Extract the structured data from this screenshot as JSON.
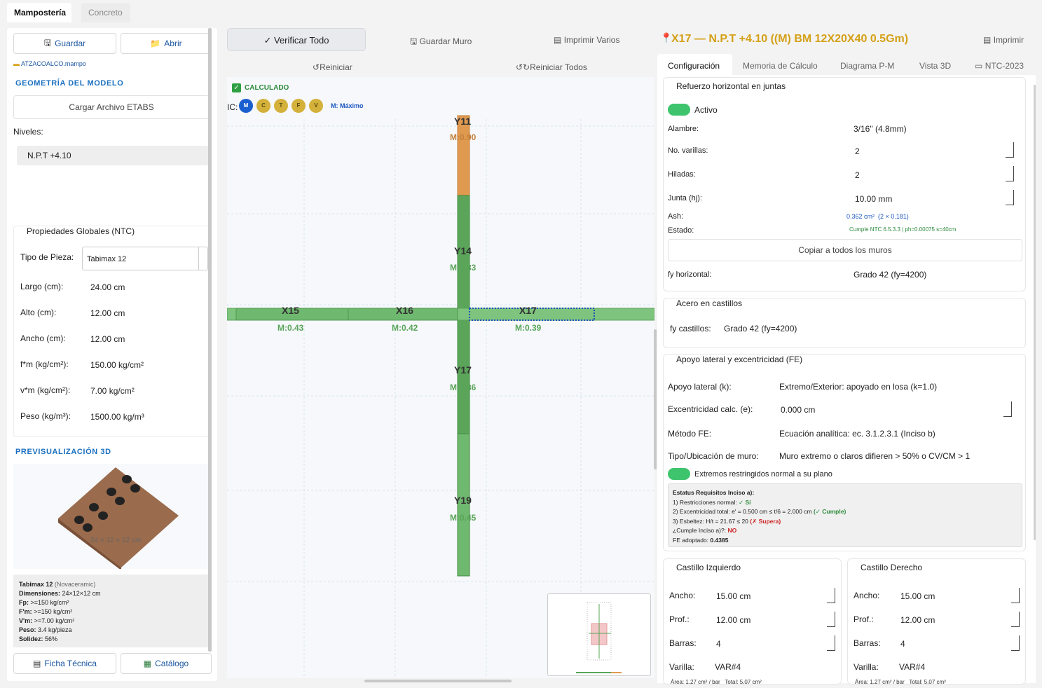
{
  "tabs": {
    "mamposteria": "Mampostería",
    "concreto": "Concreto"
  },
  "left": {
    "guardar": "Guardar",
    "abrir": "Abrir",
    "file": "ATZACOALCO.mampo",
    "geom_title": "GEOMETRÍA DEL MODELO",
    "cargar": "Cargar Archivo ETABS",
    "niveles_label": "Niveles:",
    "nivel_item": "N.P.T +4.10",
    "props_title": "Propiedades Globales (NTC)",
    "tipo_label": "Tipo de Pieza:",
    "tipo_value": "Tabimax 12",
    "props": [
      {
        "label": "Largo (cm):",
        "value": "24.00 cm"
      },
      {
        "label": "Alto (cm):",
        "value": "12.00 cm"
      },
      {
        "label": "Ancho (cm):",
        "value": "12.00 cm"
      },
      {
        "label": "f*m (kg/cm²):",
        "value": "150.00 kg/cm²"
      },
      {
        "label": "v*m (kg/cm²):",
        "value": "7.00 kg/cm²"
      },
      {
        "label": "Peso (kg/m³):",
        "value": "1500.00 kg/m³"
      }
    ],
    "preview_title": "PREVISUALIZACIÓN 3D",
    "preview_dims": "24 × 12 × 12 cm",
    "info": {
      "name": "Tabimax 12",
      "brand": "(Novaceramic)",
      "lines": [
        {
          "k": "Dimensiones:",
          "v": "24×12×12 cm"
        },
        {
          "k": "Fp:",
          "v": ">=150 kg/cm²"
        },
        {
          "k": "F'm:",
          "v": ">=150 kg/cm²"
        },
        {
          "k": "V'm:",
          "v": ">=7.00 kg/cm²"
        },
        {
          "k": "Peso:",
          "v": "3.4 kg/pieza"
        },
        {
          "k": "Solidez:",
          "v": "56%"
        }
      ]
    },
    "ficha": "Ficha Técnica",
    "catalogo": "Catálogo"
  },
  "center": {
    "verificar": "✓ Verificar Todo",
    "guardar_muro": "Guardar Muro",
    "imprimir_varios": "Imprimir Varios",
    "reiniciar": "Reiniciar",
    "reiniciar_todos": "Reiniciar Todos",
    "calculado": "CALCULADO",
    "ic_label": "IC:",
    "ic_buttons": [
      "M",
      "C",
      "T",
      "F",
      "V"
    ],
    "ic_mode": "M: Máximo",
    "walls": [
      {
        "name": "Y11",
        "ratio": "M:0.90"
      },
      {
        "name": "Y14",
        "ratio": "M:0.33"
      },
      {
        "name": "X15",
        "ratio": "M:0.43"
      },
      {
        "name": "X16",
        "ratio": "M:0.42"
      },
      {
        "name": "X17",
        "ratio": "M:0.39"
      },
      {
        "name": "Y17",
        "ratio": "M:0.36"
      },
      {
        "name": "Y19",
        "ratio": "M:0.45"
      }
    ]
  },
  "right": {
    "title": "X17 — N.P.T +4.10 ((M) BM 12X20X40 0.5Gm)",
    "imprimir": "Imprimir",
    "tabs": [
      "Configuración",
      "Memoria de Cálculo",
      "Diagrama P-M",
      "Vista 3D",
      "NTC-2023"
    ],
    "refuerzo": {
      "title": "Refuerzo horizontal en juntas",
      "activo": "Activo",
      "alambre_label": "Alambre:",
      "alambre": "3/16\" (4.8mm)",
      "varillas_label": "No. varillas:",
      "varillas": "2",
      "hiladas_label": "Hiladas:",
      "hiladas": "2",
      "junta_label": "Junta (hj):",
      "junta": "10.00 mm",
      "ash_label": "Ash:",
      "ash": "0.362 cm²  (2 × 0.181)",
      "estado_label": "Estado:",
      "estado": "Cumple NTC 6.5.3.3 | ph=0.00075 s=40cm",
      "copiar": "Copiar a todos los muros",
      "fy_label": "fy horizontal:",
      "fy": "Grado 42 (fy=4200)"
    },
    "acero": {
      "title": "Acero en castillos",
      "label": "fy castillos:",
      "value": "Grado 42 (fy=4200)"
    },
    "apoyo": {
      "title": "Apoyo lateral y excentricidad (FE)",
      "k_label": "Apoyo lateral (k):",
      "k": "Extremo/Exterior: apoyado en losa (k=1.0)",
      "e_label": "Excentricidad calc. (e):",
      "e": "0.000 cm",
      "metodo_label": "Método FE:",
      "metodo": "Ecuación analítica: ec. 3.1.2.3.1 (Inciso b)",
      "tipo_label": "Tipo/Ubicación de muro:",
      "tipo": "Muro extremo o claros difieren > 50% o CV/CM > 1",
      "extremos": "Extremos restringidos normal a su plano",
      "status_title": "Estatus Requisitos Inciso a):",
      "s1": "1) Restricciones normal:",
      "s1v": "✓ Sí",
      "s2": "2) Excentricidad total: e' = 0.500 cm ≤ t/6 = 2.000 cm",
      "s2v": "(✓ Cumple)",
      "s3": "3) Esbeltez: H/t = 21.67 ≤ 20",
      "s3v": "(✗ Supera)",
      "s4": "¿Cumple Inciso a)?:",
      "s4v": "NO",
      "s5": "FE adoptado:",
      "s5v": "0.4385"
    },
    "castillo_izq": {
      "title": "Castillo Izquierdo",
      "ancho": "15.00 cm",
      "prof": "12.00 cm",
      "barras": "4",
      "varilla": "VAR#4",
      "area": "Área: 1.27 cm² / bar",
      "total": "Total: 5.07 cm²"
    },
    "castillo_der": {
      "title": "Castillo Derecho",
      "ancho": "15.00 cm",
      "prof": "12.00 cm",
      "barras": "4",
      "varilla": "VAR#4",
      "area": "Área: 1.27 cm² / bar",
      "total": "Total: 5.07 cm²"
    },
    "labels": {
      "ancho": "Ancho:",
      "prof": "Prof.:",
      "barras": "Barras:",
      "varilla": "Varilla:"
    }
  },
  "colors": {
    "accent": "#1a6fbf",
    "title_gold": "#d4a017",
    "wall_green": "#5aa55a",
    "wall_orange": "#e09040",
    "toggle": "#3ec46d"
  }
}
